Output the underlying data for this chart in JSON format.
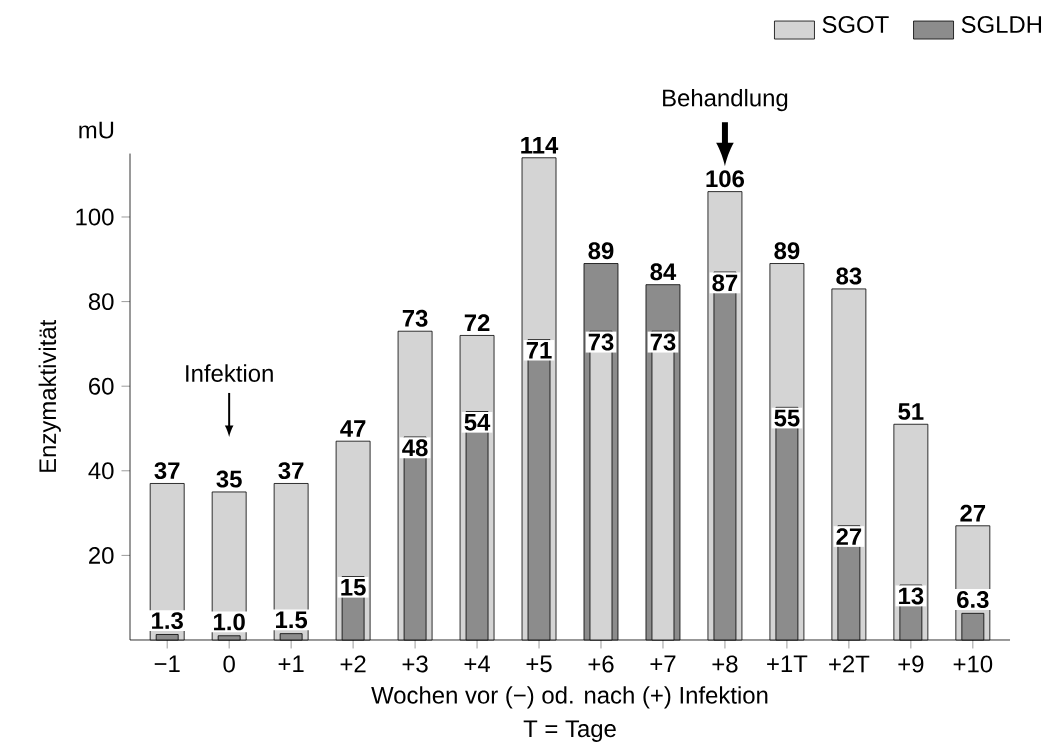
{
  "chart_data": {
    "type": "bar",
    "categories": [
      "−1",
      "0",
      "+1",
      "+2",
      "+3",
      "+4",
      "+5",
      "+6",
      "+7",
      "+8",
      "+1T",
      "+2T",
      "+9",
      "+10"
    ],
    "series": [
      {
        "name": "SGOT",
        "color": "#d4d4d4",
        "values": [
          37,
          35,
          37,
          47,
          73,
          72,
          114,
          73,
          73,
          106,
          89,
          83,
          51,
          27
        ],
        "value_labels": [
          "37",
          "35",
          "37",
          "47",
          "73",
          "72",
          "114",
          "73",
          "73",
          "106",
          "89",
          "83",
          "51",
          "27"
        ]
      },
      {
        "name": "SGLDH",
        "color": "#8c8c8c",
        "values": [
          1.3,
          1.0,
          1.5,
          15,
          48,
          54,
          71,
          89,
          84,
          87,
          55,
          27,
          13,
          6.3
        ],
        "value_labels": [
          "1.3",
          "1.0",
          "1.5",
          "15",
          "48",
          "54",
          "71",
          "89",
          "84",
          "87",
          "55",
          "27",
          "13",
          "6.3"
        ]
      }
    ],
    "ylim": [
      0,
      115
    ],
    "yticks": [
      20,
      40,
      60,
      80,
      100
    ],
    "xlabel": "Wochen vor (−) od. nach (+) Infektion",
    "ylabel": "Enzymaktivität",
    "legend": "top right",
    "annotations": [
      "Infektion",
      "Behandlung",
      "mU",
      "T = Tage"
    ]
  }
}
